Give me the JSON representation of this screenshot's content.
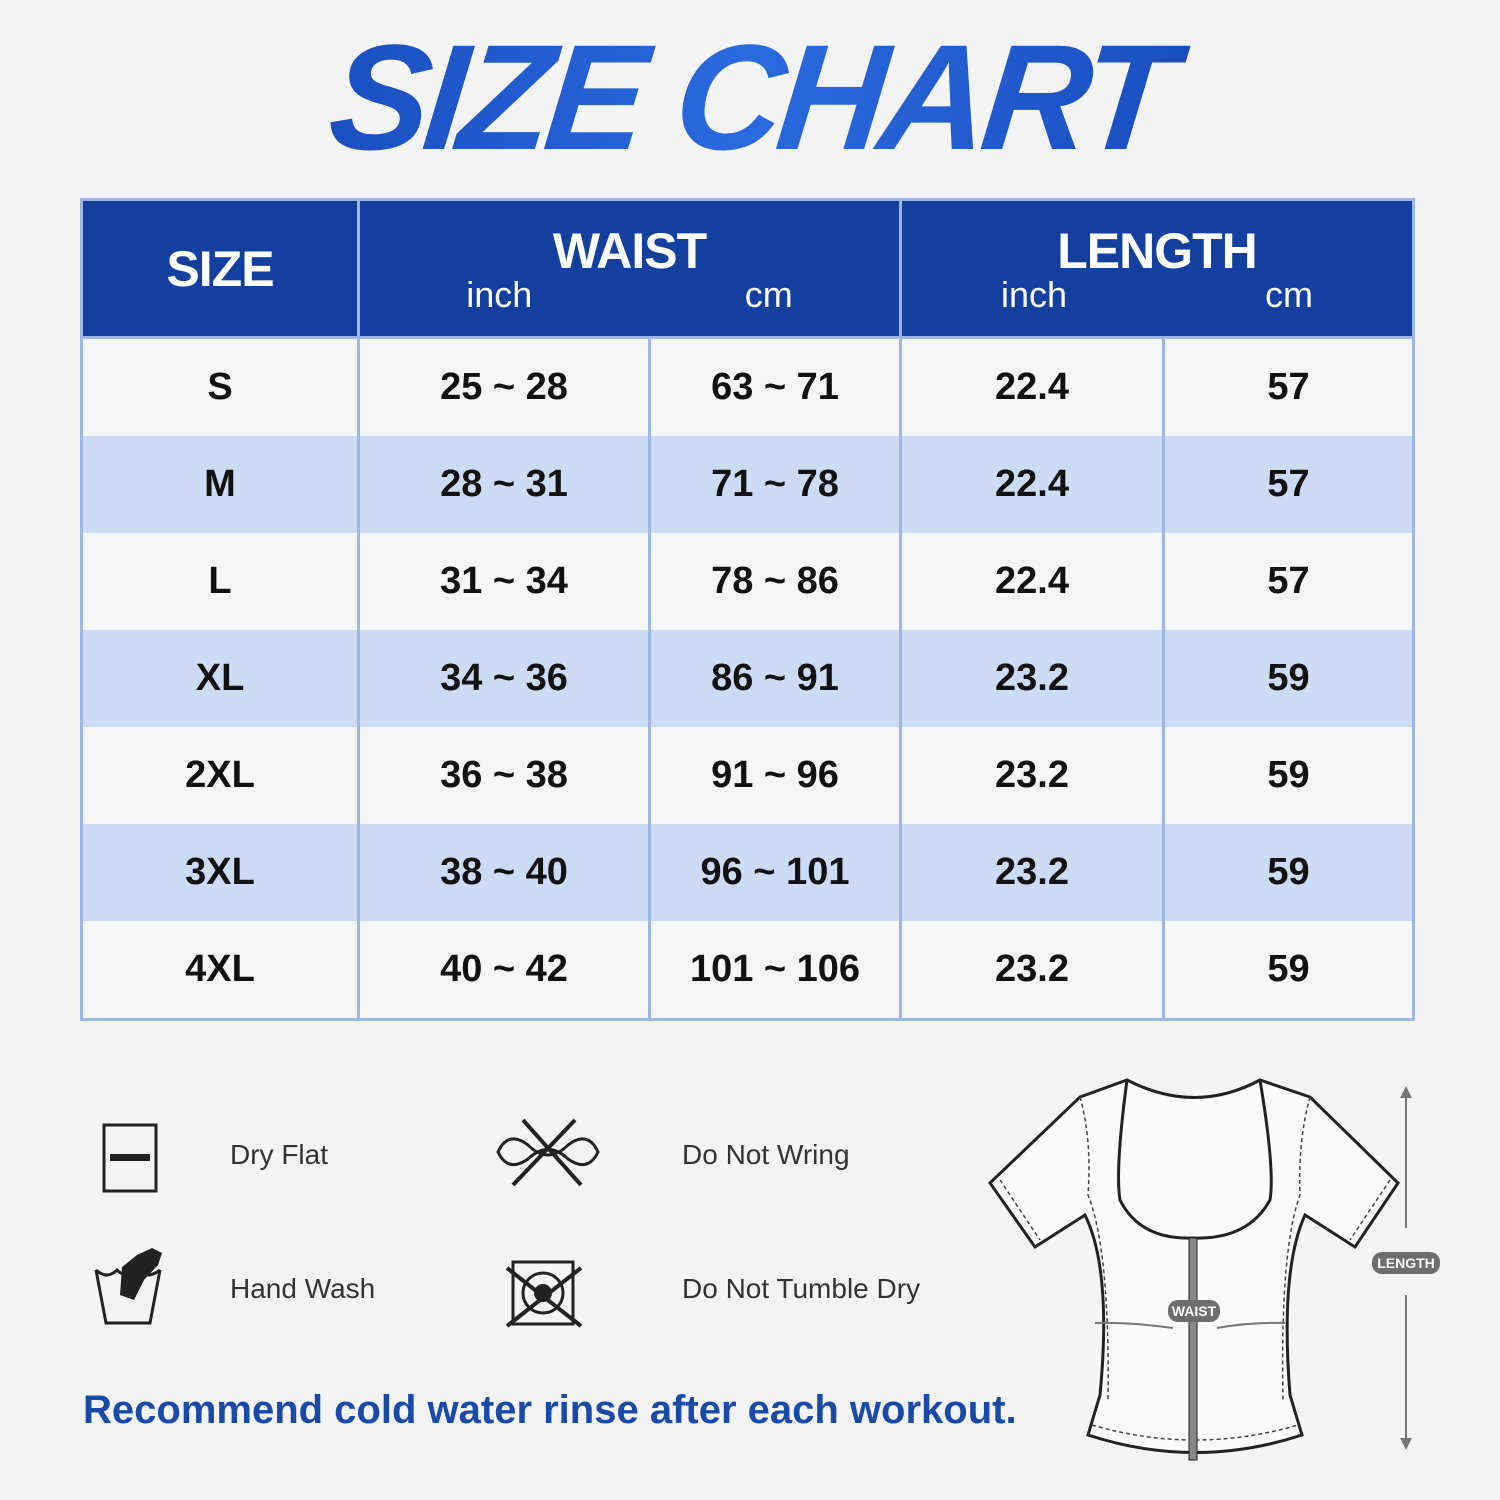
{
  "title": "SIZE CHART",
  "table": {
    "headers": {
      "size": "SIZE",
      "waist": "WAIST",
      "length": "LENGTH",
      "inch": "inch",
      "cm": "cm"
    },
    "rows": [
      [
        "S",
        "25 ~ 28",
        "63 ~ 71",
        "22.4",
        "57"
      ],
      [
        "M",
        "28 ~ 31",
        "71 ~ 78",
        "22.4",
        "57"
      ],
      [
        "L",
        "31 ~ 34",
        "78 ~ 86",
        "22.4",
        "57"
      ],
      [
        "XL",
        "34 ~ 36",
        "86 ~ 91",
        "23.2",
        "59"
      ],
      [
        "2XL",
        "36 ~ 38",
        "91 ~ 96",
        "23.2",
        "59"
      ],
      [
        "3XL",
        "38 ~ 40",
        "96 ~ 101",
        "23.2",
        "59"
      ],
      [
        "4XL",
        "40 ~ 42",
        "101 ~ 106",
        "23.2",
        "59"
      ]
    ]
  },
  "care": [
    {
      "label": "Dry Flat",
      "icon": "dry-flat-icon"
    },
    {
      "label": "Do Not Wring",
      "icon": "do-not-wring-icon"
    },
    {
      "label": "Hand Wash",
      "icon": "hand-wash-icon"
    },
    {
      "label": "Do Not Tumble Dry",
      "icon": "do-not-tumble-dry-icon"
    }
  ],
  "note": "Recommend cold water rinse after each workout.",
  "diagram": {
    "waist_label": "WAIST",
    "length_label": "LENGTH"
  },
  "colors": {
    "header": "#13409f",
    "row_alt": "#cddcf6",
    "accent": "#1a4aa8"
  }
}
